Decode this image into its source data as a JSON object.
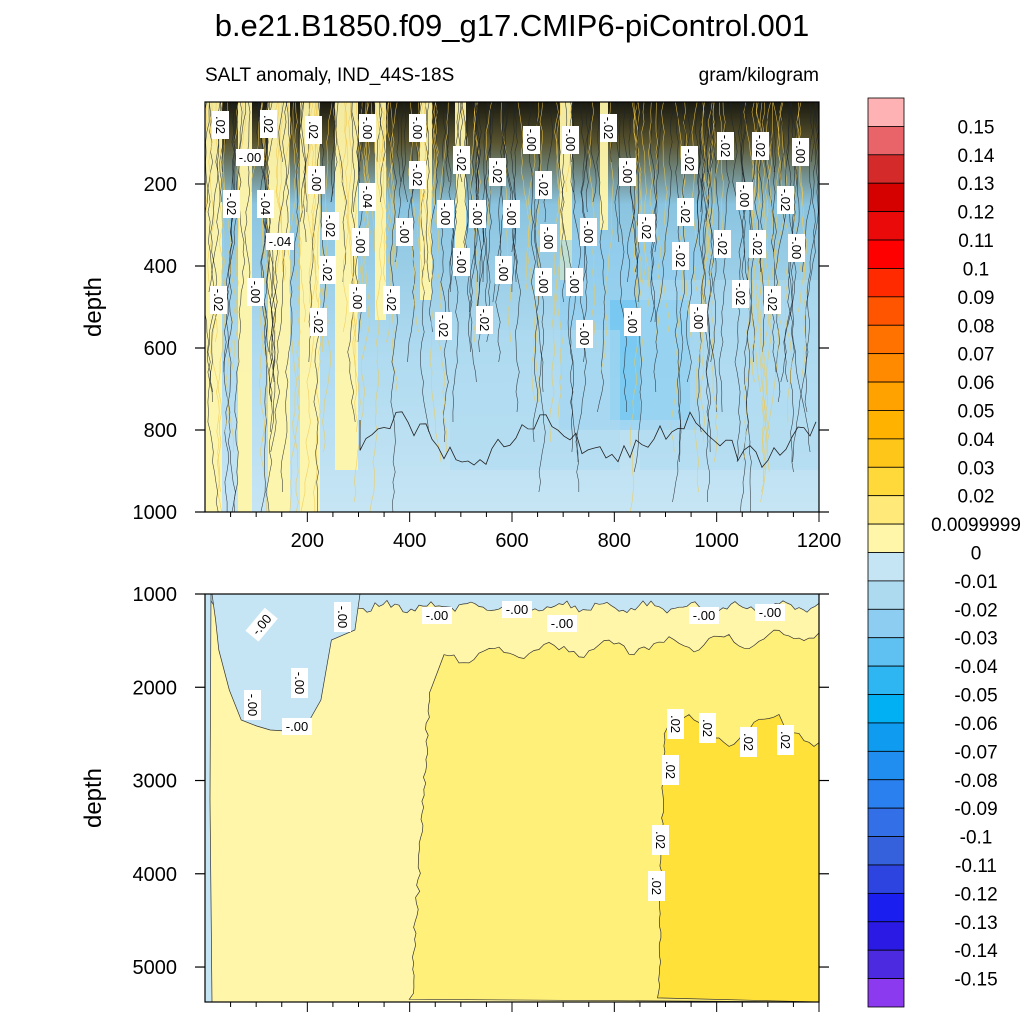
{
  "chart_data": {
    "type": "heatmap",
    "title": "b.e21.B1850.f09_g17.CMIP6-piControl.001",
    "left_subtitle": "SALT anomaly, IND_44S-18S",
    "right_subtitle": "gram/kilogram",
    "x_tick_labels": [
      "200",
      "400",
      "600",
      "800",
      "1000",
      "1200"
    ],
    "xlim": [
      0,
      1200
    ],
    "panels": [
      {
        "ylabel": "depth",
        "ylim": [
          0,
          1000
        ],
        "y_ticks": [
          200,
          400,
          600,
          800,
          1000
        ],
        "y_tick_labels": [
          "200",
          "400",
          "600",
          "800",
          "1000"
        ],
        "contour_labels": [
          ".02",
          ".02",
          ".02",
          "-.00",
          "-.00",
          "-.00",
          "-.00",
          "-.02",
          "-.02",
          "-.02",
          "-.00",
          "-.00",
          "-.00",
          "-.04",
          "-.02",
          "-.02",
          "-.02",
          "-.02",
          "-.00",
          "-.02",
          "-.00",
          "-.02",
          "-.02",
          "-.04",
          "-.02",
          "-.00",
          "-.00",
          "-.00",
          "-.00",
          "-.00",
          "-.00",
          "-.00",
          "-.02",
          "-.02",
          "-.02",
          "-.02",
          "-.00",
          "-.04",
          "-.02",
          "-.00",
          "-.00",
          "-.00",
          "-.00",
          "-.02",
          "-.02",
          "-.00",
          "-.02",
          "-.00",
          "-.02",
          "-.02",
          "-.02",
          "-.00",
          "-.00",
          "-.00",
          "-.02",
          "-.02",
          "-.02",
          "-.00"
        ]
      },
      {
        "ylabel": "depth",
        "ylim": [
          1000,
          5375
        ],
        "y_ticks": [
          1000,
          2000,
          3000,
          4000,
          5000
        ],
        "y_tick_labels": [
          "1000",
          "2000",
          "3000",
          "4000",
          "5000"
        ],
        "contour_labels": [
          "-.00",
          "-.00",
          "-.00",
          "-.00",
          "-.00",
          "-.00",
          "-.00",
          "-.00",
          "-.00",
          "-.00",
          ".02",
          ".02",
          ".02",
          ".02",
          ".02",
          ".02",
          ".02"
        ]
      }
    ],
    "colorbar": {
      "levels": [
        "0.15",
        "0.14",
        "0.13",
        "0.12",
        "0.11",
        "0.1",
        "0.09",
        "0.08",
        "0.07",
        "0.06",
        "0.05",
        "0.04",
        "0.03",
        "0.02",
        "0.0099999",
        "0",
        "-0.01",
        "-0.02",
        "-0.03",
        "-0.04",
        "-0.05",
        "-0.06",
        "-0.07",
        "-0.08",
        "-0.09",
        "-0.1",
        "-0.11",
        "-0.12",
        "-0.13",
        "-0.14",
        "-0.15"
      ],
      "colors": [
        "#ffb2b4",
        "#e86468",
        "#d42a2a",
        "#d50000",
        "#ea0a0a",
        "#ff0000",
        "#ff2a00",
        "#ff5500",
        "#ff7200",
        "#ff8a00",
        "#ffa200",
        "#ffb300",
        "#ffc61a",
        "#ffd83a",
        "#ffe978",
        "#fff6aa",
        "#c6e5f4",
        "#aedaf0",
        "#8ecdf2",
        "#5ec1f2",
        "#2eb6f2",
        "#00b0f2",
        "#0f9cf0",
        "#1f8ef0",
        "#2a80ee",
        "#336fe6",
        "#3562dc",
        "#2d44e0",
        "#1a1ff0",
        "#2b1ae4",
        "#4b2ae0",
        "#8c3aef"
      ]
    }
  }
}
